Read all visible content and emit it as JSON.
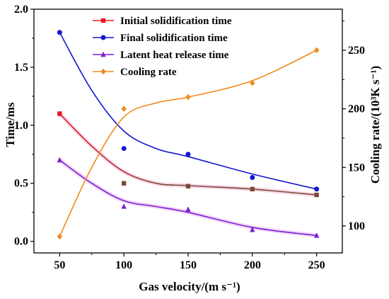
{
  "chart_data": {
    "type": "line",
    "xlabel": "Gas velocity/(m s⁻¹)",
    "ylabel_left": "Time/ms",
    "ylabel_right": "Cooling rate/(10³K s⁻¹)",
    "xlim": [
      30,
      270
    ],
    "ylim_left": [
      -0.1,
      2.0
    ],
    "ylim_right": [
      77,
      285
    ],
    "x_ticks": [
      "50",
      "100",
      "150",
      "200",
      "250"
    ],
    "y_left_ticks": [
      "0.0",
      "0.5",
      "1.0",
      "1.5",
      "2.0"
    ],
    "y_right_ticks": [
      "100",
      "150",
      "200",
      "250"
    ],
    "legend_position": "top",
    "grid": false,
    "x": [
      50,
      100,
      150,
      200,
      250
    ],
    "series": [
      {
        "name": "Initial solidification time",
        "axis": "left",
        "marker": "square",
        "color": "#e8191c",
        "values": [
          1.1,
          0.5,
          0.475,
          0.45,
          0.4
        ],
        "fit_color_start": "#e8191c",
        "fit_color_end": "#7a4a3a"
      },
      {
        "name": "Final solidification time",
        "axis": "left",
        "marker": "circle",
        "color": "#1515d0",
        "values": [
          1.8,
          0.8,
          0.75,
          0.55,
          0.45
        ]
      },
      {
        "name": "Latent heat release time",
        "axis": "left",
        "marker": "triangle",
        "color": "#7a1fd6",
        "values": [
          0.7,
          0.3,
          0.275,
          0.1,
          0.05
        ]
      },
      {
        "name": "Cooling rate",
        "axis": "right",
        "marker": "diamond",
        "color": "#f28a1e",
        "values": [
          91,
          200,
          210,
          222,
          250
        ]
      }
    ]
  }
}
